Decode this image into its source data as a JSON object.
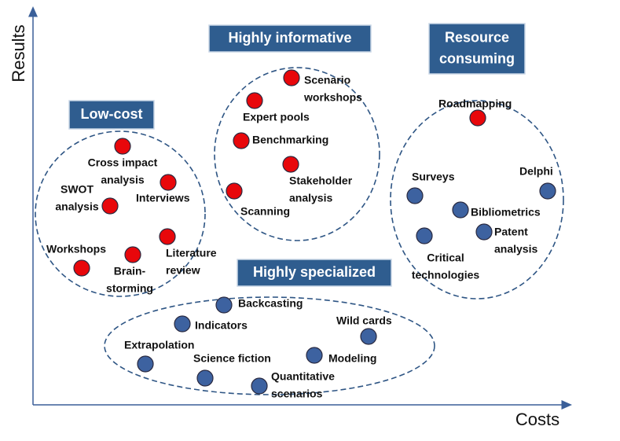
{
  "axes": {
    "y": "Results",
    "x": "Costs"
  },
  "groups": [
    {
      "title": [
        "Low-cost"
      ],
      "nodes": [
        {
          "label": [
            "Cross impact",
            "analysis"
          ]
        },
        {
          "label": [
            "Interviews"
          ]
        },
        {
          "label": [
            "SWOT",
            "analysis"
          ]
        },
        {
          "label": [
            "Literature",
            "review"
          ]
        },
        {
          "label": [
            "Brain-",
            "storming"
          ]
        },
        {
          "label": [
            "Workshops"
          ]
        }
      ]
    },
    {
      "title": [
        "Highly informative"
      ],
      "nodes": [
        {
          "label": [
            "Scenario",
            "workshops"
          ]
        },
        {
          "label": [
            "Expert pools"
          ]
        },
        {
          "label": [
            "Benchmarking"
          ]
        },
        {
          "label": [
            "Stakeholder",
            "analysis"
          ]
        },
        {
          "label": [
            "Scanning"
          ]
        }
      ]
    },
    {
      "title": [
        "Resource",
        "consuming"
      ],
      "nodes": [
        {
          "label": [
            "Roadmapping"
          ]
        },
        {
          "label": [
            "Surveys"
          ]
        },
        {
          "label": [
            "Delphi"
          ]
        },
        {
          "label": [
            "Bibliometrics"
          ]
        },
        {
          "label": [
            "Patent",
            "analysis"
          ]
        },
        {
          "label": [
            "Critical",
            "technologies"
          ]
        }
      ]
    },
    {
      "title": [
        "Highly specialized"
      ],
      "nodes": [
        {
          "label": [
            "Backcasting"
          ]
        },
        {
          "label": [
            "Indicators"
          ]
        },
        {
          "label": [
            "Wild cards"
          ]
        },
        {
          "label": [
            "Extrapolation"
          ]
        },
        {
          "label": [
            "Modeling"
          ]
        },
        {
          "label": [
            "Science fiction"
          ]
        },
        {
          "label": [
            "Quantitative",
            "scenarios"
          ]
        }
      ]
    }
  ]
}
